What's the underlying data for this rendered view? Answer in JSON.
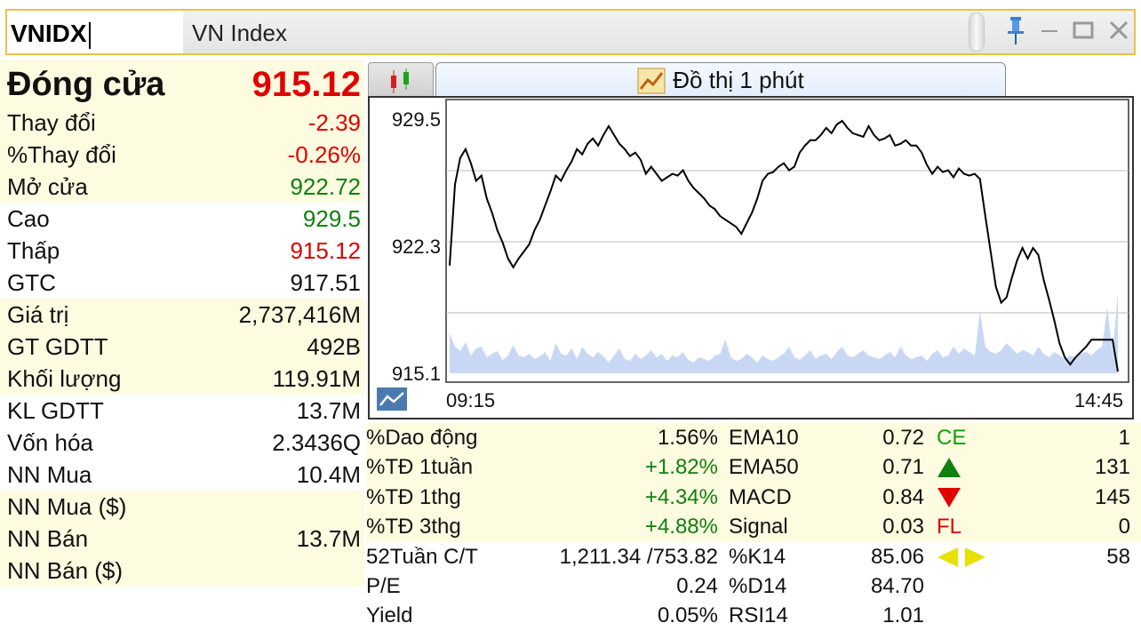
{
  "header": {
    "symbol": "VNIDX",
    "name": "VN Index"
  },
  "summary": {
    "close_label": "Đóng cửa",
    "close_value": "915.12",
    "rows": [
      {
        "label": "Thay đổi",
        "value": "-2.39",
        "color": "red"
      },
      {
        "label": "%Thay đổi",
        "value": "-0.26%",
        "color": "red"
      },
      {
        "label": "Mở cửa",
        "value": "922.72",
        "color": "green"
      },
      {
        "label": "Cao",
        "value": "929.5",
        "color": "green"
      },
      {
        "label": "Thấp",
        "value": "915.12",
        "color": "red"
      },
      {
        "label": "GTC",
        "value": "917.51",
        "color": "black"
      },
      {
        "label": "Giá trị",
        "value": "2,737,416M",
        "color": "black"
      },
      {
        "label": "GT GDTT",
        "value": "492B",
        "color": "black"
      },
      {
        "label": "Khối lượng",
        "value": "119.91M",
        "color": "black"
      },
      {
        "label": "KL GDTT",
        "value": "13.7M",
        "color": "black"
      },
      {
        "label": "Vốn hóa",
        "value": "2.3436Q",
        "color": "black"
      },
      {
        "label": "NN Mua",
        "value": "10.4M",
        "color": "black"
      },
      {
        "label": "NN Mua ($)",
        "value": "",
        "color": "black"
      },
      {
        "label": "NN Bán",
        "value": "13.7M",
        "color": "black"
      },
      {
        "label": "NN Bán ($)",
        "value": "",
        "color": "black"
      }
    ]
  },
  "tabs": {
    "active_label": "Đồ thị 1 phút"
  },
  "chart_data": {
    "type": "line",
    "y_ticks": [
      "929.5",
      "922.3",
      "915.1"
    ],
    "x_ticks": [
      "09:15",
      "14:45"
    ],
    "ylim": [
      915.1,
      929.5
    ],
    "price": [
      921.2,
      925.8,
      927.3,
      927.8,
      927.0,
      926.0,
      926.3,
      925.0,
      924.2,
      923.2,
      922.5,
      921.6,
      921.1,
      921.6,
      922.0,
      922.4,
      923.2,
      923.8,
      924.6,
      925.4,
      926.3,
      926.0,
      926.6,
      927.1,
      927.8,
      927.5,
      928.1,
      928.4,
      928.0,
      928.6,
      929.1,
      928.6,
      928.1,
      927.8,
      927.4,
      927.6,
      927.2,
      926.4,
      926.8,
      926.4,
      926.0,
      926.2,
      926.4,
      926.3,
      926.6,
      926.0,
      925.6,
      925.3,
      925.0,
      924.6,
      924.4,
      924.0,
      923.8,
      923.6,
      923.4,
      923.0,
      923.6,
      924.2,
      925.0,
      926.0,
      926.4,
      926.5,
      926.8,
      927.0,
      926.6,
      926.8,
      927.6,
      928.0,
      928.3,
      928.3,
      928.6,
      929.0,
      928.7,
      929.2,
      929.4,
      929.0,
      928.7,
      928.6,
      928.5,
      929.1,
      928.6,
      928.3,
      928.4,
      928.6,
      928.0,
      928.1,
      928.3,
      928.0,
      928.0,
      927.6,
      926.9,
      926.4,
      926.8,
      926.5,
      926.6,
      926.2,
      926.7,
      926.4,
      926.3,
      926.4,
      926.1,
      924.0,
      922.0,
      920.0,
      919.1,
      919.4,
      920.5,
      921.5,
      922.2,
      921.6,
      922.2,
      921.8,
      920.4,
      919.3,
      918.1,
      916.8,
      916.0,
      915.6,
      916.0,
      916.3,
      916.6,
      917.0,
      917.0,
      917.0,
      917.0,
      917.0,
      915.2
    ],
    "volume_relative": [
      0.45,
      0.3,
      0.25,
      0.35,
      0.2,
      0.28,
      0.3,
      0.18,
      0.22,
      0.25,
      0.15,
      0.2,
      0.32,
      0.2,
      0.18,
      0.22,
      0.16,
      0.19,
      0.24,
      0.14,
      0.34,
      0.22,
      0.2,
      0.28,
      0.16,
      0.3,
      0.22,
      0.18,
      0.24,
      0.19,
      0.12,
      0.2,
      0.28,
      0.16,
      0.14,
      0.22,
      0.16,
      0.2,
      0.26,
      0.18,
      0.22,
      0.14,
      0.2,
      0.18,
      0.24,
      0.15,
      0.12,
      0.18,
      0.16,
      0.14,
      0.2,
      0.22,
      0.38,
      0.18,
      0.14,
      0.16,
      0.22,
      0.18,
      0.12,
      0.2,
      0.16,
      0.14,
      0.18,
      0.22,
      0.3,
      0.18,
      0.15,
      0.2,
      0.26,
      0.16,
      0.2,
      0.22,
      0.16,
      0.24,
      0.3,
      0.2,
      0.18,
      0.22,
      0.26,
      0.2,
      0.18,
      0.16,
      0.2,
      0.24,
      0.18,
      0.3,
      0.2,
      0.16,
      0.18,
      0.2,
      0.14,
      0.22,
      0.26,
      0.18,
      0.2,
      0.3,
      0.22,
      0.28,
      0.24,
      0.2,
      0.7,
      0.3,
      0.24,
      0.22,
      0.26,
      0.34,
      0.28,
      0.22,
      0.26,
      0.24,
      0.2,
      0.3,
      0.22,
      0.18,
      0.24,
      0.2,
      0.16,
      0.2,
      0.18,
      0.22,
      0.24,
      0.2,
      0.26,
      0.3,
      0.74,
      0.24,
      0.9
    ]
  },
  "stats": {
    "rows": [
      {
        "l1": "%Dao động",
        "v1": "1.56%",
        "v1c": "black",
        "l2": "EMA10",
        "v2": "0.72",
        "l3": "CE",
        "l3type": "ce",
        "v3": "1"
      },
      {
        "l1": "%TĐ 1tuần",
        "v1": "+1.82%",
        "v1c": "green",
        "l2": "EMA50",
        "v2": "0.71",
        "l3": "",
        "l3type": "up",
        "v3": "131"
      },
      {
        "l1": "%TĐ 1thg",
        "v1": "+4.34%",
        "v1c": "green",
        "l2": "MACD",
        "v2": "0.84",
        "l3": "",
        "l3type": "down",
        "v3": "145"
      },
      {
        "l1": "%TĐ 3thg",
        "v1": "+4.88%",
        "v1c": "green",
        "l2": "Signal",
        "v2": "0.03",
        "l3": "FL",
        "l3type": "fl",
        "v3": "0"
      },
      {
        "l1": "52Tuần C/T",
        "v1": "1,211.34 /753.82",
        "v1c": "black",
        "l2": "%K14",
        "v2": "85.06",
        "l3": "",
        "l3type": "flat",
        "v3": "58"
      },
      {
        "l1": "P/E",
        "v1": "0.24",
        "v1c": "black",
        "l2": "%D14",
        "v2": "84.70",
        "l3": "",
        "l3type": "none",
        "v3": ""
      },
      {
        "l1": "Yield",
        "v1": "0.05%",
        "v1c": "black",
        "l2": "RSI14",
        "v2": "1.01",
        "l3": "",
        "l3type": "none",
        "v3": ""
      }
    ]
  },
  "colors": {
    "red": "#e00000",
    "green": "#108010",
    "ce_color": "#10a010",
    "fl_color": "#e00000",
    "volume_fill": "#c8d8f4",
    "grid": "#bbbbbb"
  }
}
